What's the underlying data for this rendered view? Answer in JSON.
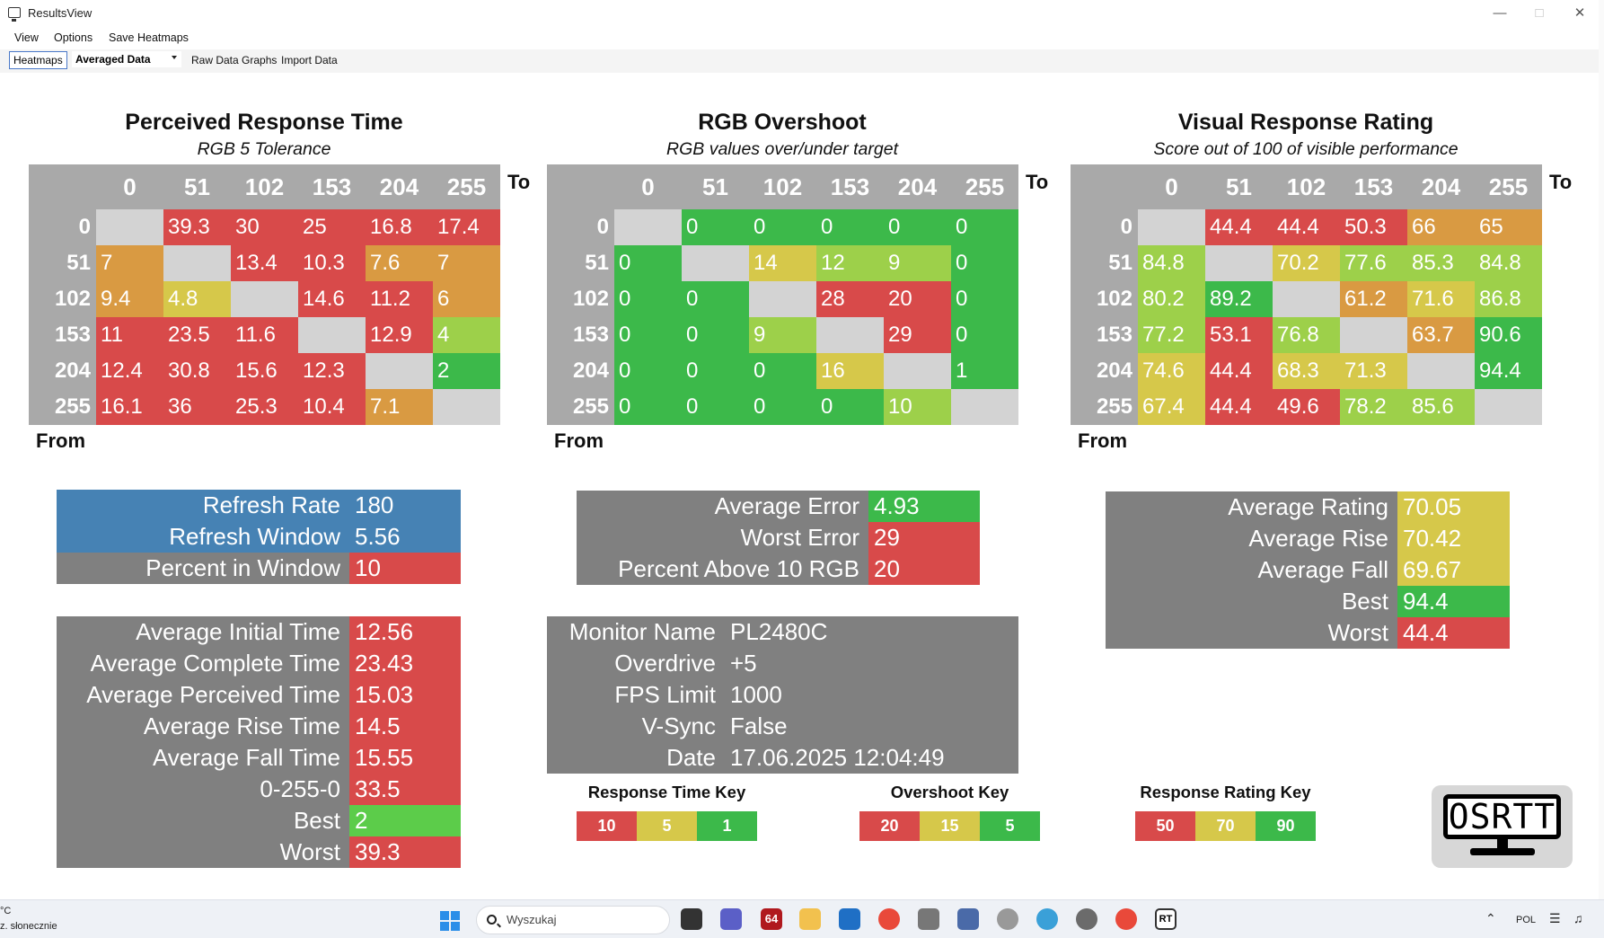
{
  "window": {
    "title": "ResultsView"
  },
  "menu": [
    "View",
    "Options",
    "Save Heatmaps"
  ],
  "toolbar": {
    "heatmaps": "Heatmaps",
    "dropdown": "Averaged Data",
    "raw": "Raw Data Graphs",
    "import": "Import Data"
  },
  "colors": {
    "red": "#d84a4a",
    "orange": "#d99a42",
    "yellow": "#d6c84a",
    "lightgreen": "#9dd04a",
    "green": "#3cb94a",
    "gray": "#808080",
    "blue": "#4682b4",
    "grid": "#a9a9a9",
    "empty": "#d3d3d3"
  },
  "labels": {
    "to": "To",
    "from": "From"
  },
  "heatmaps": [
    {
      "title": "Perceived Response Time",
      "subtitle": "RGB 5 Tolerance",
      "cols": [
        "0",
        "51",
        "102",
        "153",
        "204",
        "255"
      ],
      "rows": [
        {
          "from": "0",
          "cells": [
            {
              "v": "",
              "c": "empty"
            },
            {
              "v": "39.3",
              "c": "red"
            },
            {
              "v": "30",
              "c": "red"
            },
            {
              "v": "25",
              "c": "red"
            },
            {
              "v": "16.8",
              "c": "red"
            },
            {
              "v": "17.4",
              "c": "red"
            }
          ]
        },
        {
          "from": "51",
          "cells": [
            {
              "v": "7",
              "c": "orange"
            },
            {
              "v": "",
              "c": "empty"
            },
            {
              "v": "13.4",
              "c": "red"
            },
            {
              "v": "10.3",
              "c": "red"
            },
            {
              "v": "7.6",
              "c": "orange"
            },
            {
              "v": "7",
              "c": "orange"
            }
          ]
        },
        {
          "from": "102",
          "cells": [
            {
              "v": "9.4",
              "c": "orange"
            },
            {
              "v": "4.8",
              "c": "yellow"
            },
            {
              "v": "",
              "c": "empty"
            },
            {
              "v": "14.6",
              "c": "red"
            },
            {
              "v": "11.2",
              "c": "red"
            },
            {
              "v": "6",
              "c": "orange"
            }
          ]
        },
        {
          "from": "153",
          "cells": [
            {
              "v": "11",
              "c": "red"
            },
            {
              "v": "23.5",
              "c": "red"
            },
            {
              "v": "11.6",
              "c": "red"
            },
            {
              "v": "",
              "c": "empty"
            },
            {
              "v": "12.9",
              "c": "red"
            },
            {
              "v": "4",
              "c": "lightgreen"
            }
          ]
        },
        {
          "from": "204",
          "cells": [
            {
              "v": "12.4",
              "c": "red"
            },
            {
              "v": "30.8",
              "c": "red"
            },
            {
              "v": "15.6",
              "c": "red"
            },
            {
              "v": "12.3",
              "c": "red"
            },
            {
              "v": "",
              "c": "empty"
            },
            {
              "v": "2",
              "c": "green"
            }
          ]
        },
        {
          "from": "255",
          "cells": [
            {
              "v": "16.1",
              "c": "red"
            },
            {
              "v": "36",
              "c": "red"
            },
            {
              "v": "25.3",
              "c": "red"
            },
            {
              "v": "10.4",
              "c": "red"
            },
            {
              "v": "7.1",
              "c": "orange"
            },
            {
              "v": "",
              "c": "empty"
            }
          ]
        }
      ]
    },
    {
      "title": "RGB Overshoot",
      "subtitle": "RGB values over/under target",
      "cols": [
        "0",
        "51",
        "102",
        "153",
        "204",
        "255"
      ],
      "rows": [
        {
          "from": "0",
          "cells": [
            {
              "v": "",
              "c": "empty"
            },
            {
              "v": "0",
              "c": "green"
            },
            {
              "v": "0",
              "c": "green"
            },
            {
              "v": "0",
              "c": "green"
            },
            {
              "v": "0",
              "c": "green"
            },
            {
              "v": "0",
              "c": "green"
            }
          ]
        },
        {
          "from": "51",
          "cells": [
            {
              "v": "0",
              "c": "green"
            },
            {
              "v": "",
              "c": "empty"
            },
            {
              "v": "14",
              "c": "yellow"
            },
            {
              "v": "12",
              "c": "lightgreen"
            },
            {
              "v": "9",
              "c": "lightgreen"
            },
            {
              "v": "0",
              "c": "green"
            }
          ]
        },
        {
          "from": "102",
          "cells": [
            {
              "v": "0",
              "c": "green"
            },
            {
              "v": "0",
              "c": "green"
            },
            {
              "v": "",
              "c": "empty"
            },
            {
              "v": "28",
              "c": "red"
            },
            {
              "v": "20",
              "c": "red"
            },
            {
              "v": "0",
              "c": "green"
            }
          ]
        },
        {
          "from": "153",
          "cells": [
            {
              "v": "0",
              "c": "green"
            },
            {
              "v": "0",
              "c": "green"
            },
            {
              "v": "9",
              "c": "lightgreen"
            },
            {
              "v": "",
              "c": "empty"
            },
            {
              "v": "29",
              "c": "red"
            },
            {
              "v": "0",
              "c": "green"
            }
          ]
        },
        {
          "from": "204",
          "cells": [
            {
              "v": "0",
              "c": "green"
            },
            {
              "v": "0",
              "c": "green"
            },
            {
              "v": "0",
              "c": "green"
            },
            {
              "v": "16",
              "c": "yellow"
            },
            {
              "v": "",
              "c": "empty"
            },
            {
              "v": "1",
              "c": "green"
            }
          ]
        },
        {
          "from": "255",
          "cells": [
            {
              "v": "0",
              "c": "green"
            },
            {
              "v": "0",
              "c": "green"
            },
            {
              "v": "0",
              "c": "green"
            },
            {
              "v": "0",
              "c": "green"
            },
            {
              "v": "10",
              "c": "lightgreen"
            },
            {
              "v": "",
              "c": "empty"
            }
          ]
        }
      ]
    },
    {
      "title": "Visual Response Rating",
      "subtitle": "Score out of 100 of visible performance",
      "cols": [
        "0",
        "51",
        "102",
        "153",
        "204",
        "255"
      ],
      "rows": [
        {
          "from": "0",
          "cells": [
            {
              "v": "",
              "c": "empty"
            },
            {
              "v": "44.4",
              "c": "red"
            },
            {
              "v": "44.4",
              "c": "red"
            },
            {
              "v": "50.3",
              "c": "red"
            },
            {
              "v": "66",
              "c": "orange"
            },
            {
              "v": "65",
              "c": "orange"
            }
          ]
        },
        {
          "from": "51",
          "cells": [
            {
              "v": "84.8",
              "c": "lightgreen"
            },
            {
              "v": "",
              "c": "empty"
            },
            {
              "v": "70.2",
              "c": "yellow"
            },
            {
              "v": "77.6",
              "c": "lightgreen"
            },
            {
              "v": "85.3",
              "c": "lightgreen"
            },
            {
              "v": "84.8",
              "c": "lightgreen"
            }
          ]
        },
        {
          "from": "102",
          "cells": [
            {
              "v": "80.2",
              "c": "lightgreen"
            },
            {
              "v": "89.2",
              "c": "green"
            },
            {
              "v": "",
              "c": "empty"
            },
            {
              "v": "61.2",
              "c": "orange"
            },
            {
              "v": "71.6",
              "c": "yellow"
            },
            {
              "v": "86.8",
              "c": "lightgreen"
            }
          ]
        },
        {
          "from": "153",
          "cells": [
            {
              "v": "77.2",
              "c": "lightgreen"
            },
            {
              "v": "53.1",
              "c": "red"
            },
            {
              "v": "76.8",
              "c": "lightgreen"
            },
            {
              "v": "",
              "c": "empty"
            },
            {
              "v": "63.7",
              "c": "orange"
            },
            {
              "v": "90.6",
              "c": "green"
            }
          ]
        },
        {
          "from": "204",
          "cells": [
            {
              "v": "74.6",
              "c": "yellow"
            },
            {
              "v": "44.4",
              "c": "red"
            },
            {
              "v": "68.3",
              "c": "yellow"
            },
            {
              "v": "71.3",
              "c": "yellow"
            },
            {
              "v": "",
              "c": "empty"
            },
            {
              "v": "94.4",
              "c": "green"
            }
          ]
        },
        {
          "from": "255",
          "cells": [
            {
              "v": "67.4",
              "c": "yellow"
            },
            {
              "v": "44.4",
              "c": "red"
            },
            {
              "v": "49.6",
              "c": "red"
            },
            {
              "v": "78.2",
              "c": "lightgreen"
            },
            {
              "v": "85.6",
              "c": "lightgreen"
            },
            {
              "v": "",
              "c": "empty"
            }
          ]
        }
      ]
    }
  ],
  "stats": {
    "refresh": [
      {
        "label": "Refresh Rate",
        "value": "180",
        "lc": "blue",
        "vc": "blue"
      },
      {
        "label": "Refresh Window",
        "value": "5.56",
        "lc": "blue",
        "vc": "blue"
      },
      {
        "label": "Percent in Window",
        "value": "10",
        "lc": "gray",
        "vc": "red"
      }
    ],
    "times": [
      {
        "label": "Average Initial Time",
        "value": "12.56",
        "vc": "red"
      },
      {
        "label": "Average Complete Time",
        "value": "23.43",
        "vc": "red"
      },
      {
        "label": "Average Perceived Time",
        "value": "15.03",
        "vc": "red"
      },
      {
        "label": "Average Rise Time",
        "value": "14.5",
        "vc": "red"
      },
      {
        "label": "Average Fall Time",
        "value": "15.55",
        "vc": "red"
      },
      {
        "label": "0-255-0",
        "value": "33.5",
        "vc": "red"
      },
      {
        "label": "Best",
        "value": "2",
        "vc": "brightgreen"
      },
      {
        "label": "Worst",
        "value": "39.3",
        "vc": "red"
      }
    ],
    "overshoot": [
      {
        "label": "Average Error",
        "value": "4.93",
        "vc": "green"
      },
      {
        "label": "Worst Error",
        "value": "29",
        "vc": "red"
      },
      {
        "label": "Percent Above 10 RGB",
        "value": "20",
        "vc": "red"
      }
    ],
    "monitor": [
      {
        "label": "Monitor Name",
        "value": "PL2480C"
      },
      {
        "label": "Overdrive",
        "value": "+5"
      },
      {
        "label": "FPS Limit",
        "value": "1000"
      },
      {
        "label": "V-Sync",
        "value": "False"
      },
      {
        "label": "Date",
        "value": "17.06.2025 12:04:49"
      }
    ],
    "rating": [
      {
        "label": "Average Rating",
        "value": "70.05",
        "vc": "yellow"
      },
      {
        "label": "Average Rise",
        "value": "70.42",
        "vc": "yellow"
      },
      {
        "label": "Average Fall",
        "value": "69.67",
        "vc": "yellow"
      },
      {
        "label": "Best",
        "value": "94.4",
        "vc": "green"
      },
      {
        "label": "Worst",
        "value": "44.4",
        "vc": "red"
      }
    ]
  },
  "keys": [
    {
      "title": "Response Time Key",
      "values": [
        {
          "v": "10",
          "c": "red"
        },
        {
          "v": "5",
          "c": "yellow"
        },
        {
          "v": "1",
          "c": "green"
        }
      ]
    },
    {
      "title": "Overshoot Key",
      "values": [
        {
          "v": "20",
          "c": "red"
        },
        {
          "v": "15",
          "c": "yellow"
        },
        {
          "v": "5",
          "c": "green"
        }
      ]
    },
    {
      "title": "Response Rating Key",
      "values": [
        {
          "v": "50",
          "c": "red"
        },
        {
          "v": "70",
          "c": "yellow"
        },
        {
          "v": "90",
          "c": "green"
        }
      ]
    }
  ],
  "logo": "OSRTT",
  "taskbar": {
    "weather_temp": "°C",
    "weather_desc": "z. słonecznie",
    "search_placeholder": "Wyszukaj",
    "lang": "POL"
  }
}
